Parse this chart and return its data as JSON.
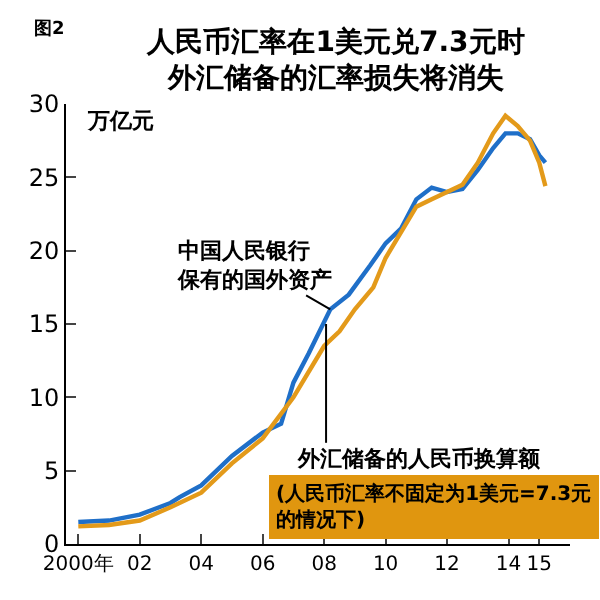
{
  "chart_data": {
    "type": "line",
    "title": "人民币汇率在1美元兑7.3元时外汇储备的汇率损失将消失",
    "ylabel": "万亿元",
    "annotations": [
      "图2",
      "(人民币汇率不固定为1美元=7.3元的情况下)"
    ],
    "xlim": [
      1999.6,
      2016.0
    ],
    "ylim": [
      0,
      30
    ],
    "xticks": [
      {
        "value": 2000,
        "label": "2000年"
      },
      {
        "value": 2002,
        "label": "02"
      },
      {
        "value": 2004,
        "label": "04"
      },
      {
        "value": 2006,
        "label": "06"
      },
      {
        "value": 2008,
        "label": "08"
      },
      {
        "value": 2010,
        "label": "10"
      },
      {
        "value": 2012,
        "label": "12"
      },
      {
        "value": 2014,
        "label": "14"
      },
      {
        "value": 2015,
        "label": "15"
      }
    ],
    "yticks": [
      0,
      5,
      10,
      15,
      20,
      25,
      30
    ],
    "legend": false,
    "series": [
      {
        "name": "中国人民银行保有的国外资产",
        "color": "#1f6fc8",
        "x": [
          2000,
          2001,
          2002,
          2003,
          2003.3,
          2004,
          2005,
          2006,
          2006.6,
          2007,
          2007.5,
          2008.2,
          2008.8,
          2009.5,
          2010,
          2010.5,
          2011,
          2011.5,
          2012,
          2012.5,
          2013,
          2013.5,
          2013.9,
          2014.3,
          2014.7,
          2015.0,
          2015.2
        ],
        "values": [
          1.5,
          1.6,
          2.0,
          2.8,
          3.2,
          4.0,
          6.0,
          7.6,
          8.2,
          11.0,
          13.0,
          16.0,
          17.0,
          19.0,
          20.5,
          21.5,
          23.5,
          24.3,
          24.0,
          24.2,
          25.5,
          27.0,
          28.0,
          28.0,
          27.6,
          26.5,
          26.0
        ]
      },
      {
        "name": "外汇储备的人民币换算额",
        "color": "#e39a1a",
        "x": [
          2000,
          2001,
          2002,
          2003,
          2004,
          2005,
          2006,
          2007,
          2008,
          2008.5,
          2009,
          2009.6,
          2010,
          2011,
          2011.5,
          2012,
          2012.5,
          2013,
          2013.5,
          2013.9,
          2014.3,
          2014.7,
          2015.0,
          2015.2
        ],
        "values": [
          1.2,
          1.3,
          1.6,
          2.5,
          3.5,
          5.5,
          7.2,
          10.0,
          13.5,
          14.5,
          16.0,
          17.5,
          19.5,
          23.0,
          23.5,
          24.0,
          24.5,
          26.0,
          28.0,
          29.2,
          28.5,
          27.5,
          26.0,
          24.4
        ]
      }
    ]
  }
}
